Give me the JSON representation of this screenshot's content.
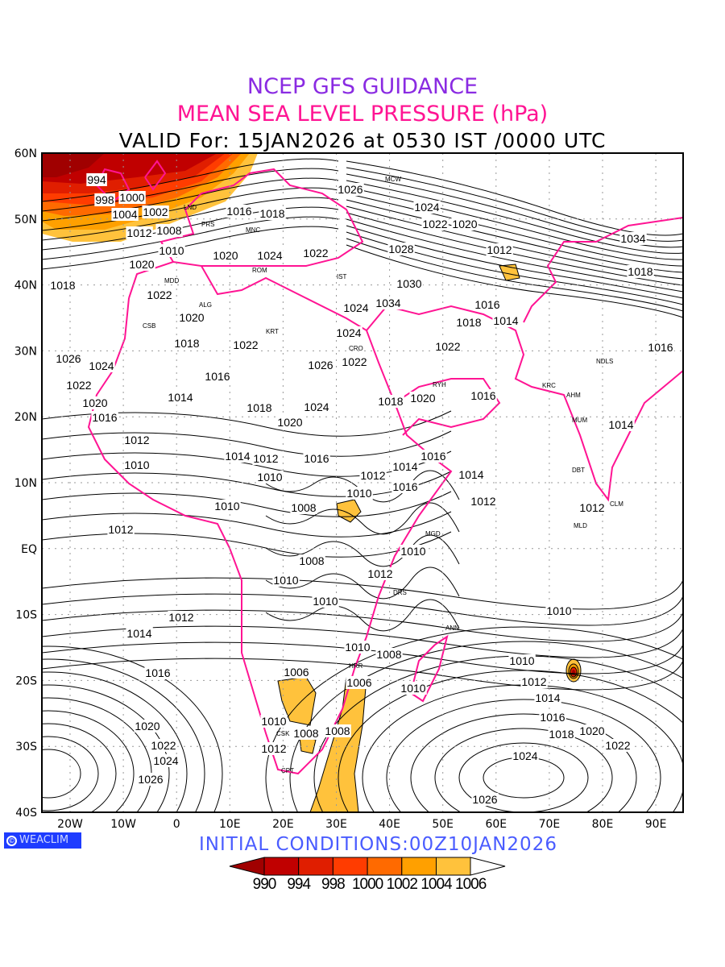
{
  "titles": {
    "line1": "NCEP GFS GUIDANCE",
    "line2": "MEAN SEA LEVEL PRESSURE (hPa)",
    "line3": "VALID For: 15JAN2026 at 0530 IST /0000 UTC"
  },
  "axes": {
    "lat_labels": [
      "60N",
      "50N",
      "40N",
      "30N",
      "20N",
      "10N",
      "EQ",
      "10S",
      "20S",
      "30S",
      "40S"
    ],
    "lon_labels": [
      "20W",
      "10W",
      "0",
      "10E",
      "20E",
      "30E",
      "40E",
      "50E",
      "60E",
      "70E",
      "80E",
      "90E"
    ]
  },
  "logo": {
    "text": "WEACLIM",
    "symbol": "©"
  },
  "initial_conditions": "INITIAL  CONDITIONS:00Z10JAN2026",
  "colorbar": {
    "labels": [
      "990",
      "994",
      "998",
      "1000",
      "1002",
      "1004",
      "1006"
    ],
    "colors": [
      "#a00000",
      "#c00000",
      "#e01e00",
      "#ff3c00",
      "#ff6a00",
      "#ffa000",
      "#ffc23c",
      "#ffffff"
    ]
  },
  "colors": {
    "coast": "#ff1493",
    "contour": "#000000",
    "grid": "#999999"
  },
  "contour_labels": [
    "994",
    "998",
    "1000",
    "1004",
    "1002",
    "1008",
    "1010",
    "1012",
    "1016",
    "1018",
    "1026",
    "1024",
    "1022",
    "1020",
    "1028",
    "1012",
    "1020",
    "1024",
    "1022",
    "1020",
    "1018",
    "1022",
    "1030",
    "1034",
    "1024",
    "1020",
    "1016",
    "1018",
    "1014",
    "1018",
    "1022",
    "1024",
    "1022",
    "1026",
    "1022",
    "1026",
    "1024",
    "1022",
    "1020",
    "1016",
    "1014",
    "1018",
    "1024",
    "1020",
    "1018",
    "1020",
    "1016",
    "1016",
    "1012",
    "1014",
    "1012",
    "1010",
    "1016",
    "1010",
    "1016",
    "1014",
    "1012",
    "1008",
    "1010",
    "1012",
    "1014",
    "1016",
    "1012",
    "1010",
    "1008",
    "1010",
    "1010",
    "1012",
    "1010",
    "1012",
    "1014",
    "1010",
    "1010",
    "1008",
    "1006",
    "1006",
    "1016",
    "1010",
    "1012",
    "1010",
    "1014",
    "1016",
    "1018",
    "1020",
    "1022",
    "1020",
    "1022",
    "1024",
    "1024",
    "1010",
    "1012",
    "1008",
    "1008",
    "1026",
    "1026",
    "1034",
    "1018",
    "1016",
    "1014",
    "1012"
  ],
  "stations": [
    "MCW",
    "LND",
    "PRS",
    "MNC",
    "ROM",
    "IST",
    "MDD",
    "ALG",
    "CSB",
    "KRT",
    "CRO",
    "RYH",
    "MGD",
    "DRS",
    "ANN",
    "HRR",
    "CSK",
    "CPT",
    "MLD",
    "DBT",
    "CLM",
    "MUM",
    "KRC",
    "AHM",
    "NDLS"
  ]
}
